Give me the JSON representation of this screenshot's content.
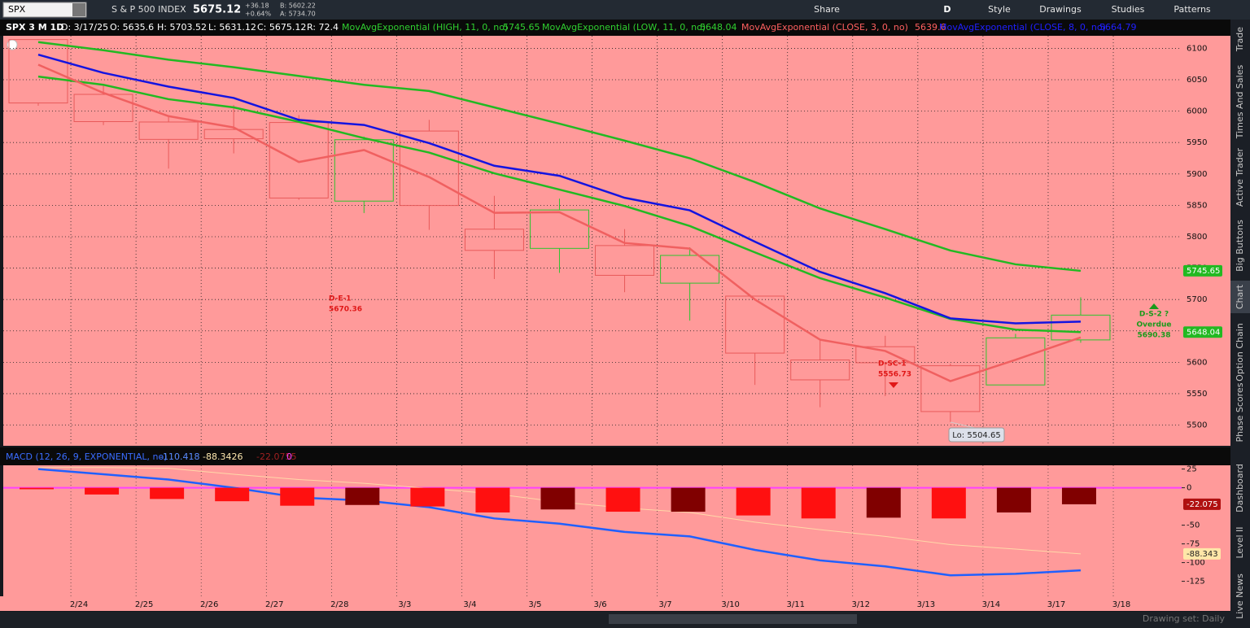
{
  "toolbar": {
    "symbol": "SPX",
    "name": "S & P 500 INDEX",
    "last": "5675.12",
    "change": "+36.18",
    "change_pct": "+0.64%",
    "bid": "B: 5602.22",
    "ask": "A: 5734.70",
    "period": "D",
    "buttons": [
      "Share",
      "Style",
      "Drawings",
      "Studies",
      "Patterns"
    ]
  },
  "chart_header": {
    "label": "SPX 3 M 1D",
    "date": "D: 3/17/25",
    "open": "O: 5635.6",
    "high": "H: 5703.52",
    "low": "L: 5631.12",
    "close": "C: 5675.12",
    "range": "R: 72.4"
  },
  "chart_data": [
    {
      "type": "candlestick",
      "categories": [
        null,
        "2/24",
        "2/25",
        "2/26",
        "2/27",
        "2/28",
        "3/3",
        "3/4",
        "3/5",
        "3/6",
        "3/7",
        "3/10",
        "3/11",
        "3/12",
        "3/13",
        "3/14",
        "3/17",
        "3/18"
      ],
      "open": [
        6114,
        6026.7,
        5982.7,
        5970.8,
        5981.9,
        5856.7,
        5968.3,
        5812,
        5781.4,
        5785.9,
        5726,
        5705.4,
        5603.7,
        5624.8,
        5594.5,
        5563.9,
        5635.6,
        null
      ],
      "high": [
        6114.8,
        6043.6,
        5992.6,
        6009.8,
        5993.7,
        5959.4,
        5986.1,
        5865.1,
        5860.6,
        5812.1,
        5783,
        5705.4,
        5636.3,
        5642.2,
        5597.8,
        5645.3,
        5703.52,
        null
      ],
      "low": [
        6008.6,
        5977.8,
        5908.5,
        5932.7,
        5858.8,
        5837.7,
        5810.9,
        5732.6,
        5742.4,
        5711.6,
        5666.3,
        5564,
        5528.4,
        5546.1,
        5504.65,
        5563.9,
        5631.12,
        null
      ],
      "close": [
        6013,
        5983.3,
        5955,
        5956,
        5861.6,
        5954.5,
        5849.7,
        5778.2,
        5842.6,
        5738.5,
        5770.2,
        5614.6,
        5572,
        5599.3,
        5521.5,
        5638.9,
        5675.12,
        null
      ],
      "up_color": "#2fc42f",
      "down_color": "#e85a5a",
      "ylim": [
        5467,
        6120
      ],
      "yticks": [
        5500,
        5550,
        5600,
        5650,
        5700,
        5750,
        5800,
        5850,
        5900,
        5950,
        6000,
        6050,
        6100
      ],
      "grid": true,
      "series": [
        {
          "name": "MovAvgExponential (HIGH, 11, 0, no)",
          "color": "#22b922",
          "values": [
            6110,
            6097,
            6082,
            6070,
            6056,
            6042,
            6032,
            6006,
            5980,
            5953,
            5925,
            5887,
            5845,
            5812,
            5778,
            5756,
            5745.65,
            null
          ]
        },
        {
          "name": "MovAvgExponential (LOW, 11, 0, no)",
          "color": "#22b922",
          "values": [
            6055,
            6042,
            6019,
            6006,
            5983,
            5957,
            5934,
            5901,
            5875,
            5849,
            5817,
            5775,
            5734,
            5703,
            5669,
            5652,
            5648.04,
            null
          ]
        },
        {
          "name": "MovAvgExponential (CLOSE, 3, 0, no)",
          "color": "#f06060",
          "values": [
            6074,
            6029,
            5992,
            5974,
            5919,
            5938,
            5895,
            5838,
            5839,
            5790,
            5781,
            5700,
            5636,
            5618,
            5570,
            5604,
            5639.6,
            null
          ]
        },
        {
          "name": "MovAvgExponential (CLOSE, 8, 0, no)",
          "color": "#1414e0",
          "values": [
            6090,
            6061,
            6039,
            6021,
            5986,
            5978,
            5949,
            5913,
            5897,
            5862,
            5842,
            5792,
            5744,
            5710,
            5670,
            5662,
            5664.79,
            null
          ]
        }
      ],
      "annotations": [
        {
          "lines": [
            "D-E-1",
            "5670.36"
          ],
          "color": "#e01818"
        },
        {
          "lines": [
            "D-SC-1",
            "5556.73"
          ],
          "color": "#e01818"
        },
        {
          "lines": [
            "D-S-2 ?",
            "Overdue",
            "5690.38"
          ],
          "color": "#1a9a1a"
        }
      ],
      "low_label": "Lo: 5504.65"
    },
    {
      "type": "macd",
      "title": "MACD (12, 26, 9, EXPONENTIAL, no)",
      "ylim": [
        -145,
        30
      ],
      "yticks": [
        25,
        0,
        -50,
        -75,
        -100,
        -125
      ],
      "series": [
        {
          "color": "#2060ff",
          "values": [
            25,
            18,
            11,
            0,
            -13,
            -17,
            -26,
            -41,
            -48,
            -59,
            -65,
            -83,
            -97,
            -105,
            -117,
            -115,
            -110.418
          ]
        },
        {
          "color": "#ffd8a8",
          "values": [
            27,
            27,
            26,
            18,
            11,
            6,
            -1,
            -8,
            -19,
            -27,
            -33,
            -46,
            -56,
            -65,
            -76,
            -82,
            -88.3426
          ],
          "value_labels": [
            null,
            null,
            null,
            null,
            null,
            null,
            null,
            null,
            null,
            null,
            null,
            null,
            null,
            null,
            null,
            null,
            "-88.343"
          ]
        },
        {
          "type": "histogram",
          "color": "#ff1010",
          "values": [
            -2,
            -9,
            -15,
            -18,
            -24,
            -23,
            -25,
            -33,
            -29,
            -32,
            -32,
            -37,
            -41,
            -40,
            -41,
            -33,
            -22.0755
          ],
          "colors": [
            "#ff1010",
            "#ff1010",
            "#ff1010",
            "#ff1010",
            "#ff1010",
            "#800000",
            "#ff1010",
            "#ff1010",
            "#800000",
            "#ff1010",
            "#800000",
            "#ff1010",
            "#ff1010",
            "#800000",
            "#ff1010",
            "#800000",
            "#800000"
          ],
          "value_labels": [
            null,
            null,
            null,
            null,
            null,
            null,
            null,
            null,
            null,
            null,
            null,
            null,
            null,
            null,
            null,
            null,
            "-22.075"
          ]
        }
      ],
      "zero_line": 0,
      "zero_color": "#ff40ff"
    }
  ],
  "sidebar_tabs": [
    "Trade",
    "Times And Sales",
    "Active Trader",
    "Big Buttons",
    "Chart",
    "Option Chain",
    "Phase Scores",
    "Dashboard",
    "Level II",
    "Live News"
  ],
  "footer": {
    "drawing_set": "Drawing set: Daily"
  }
}
